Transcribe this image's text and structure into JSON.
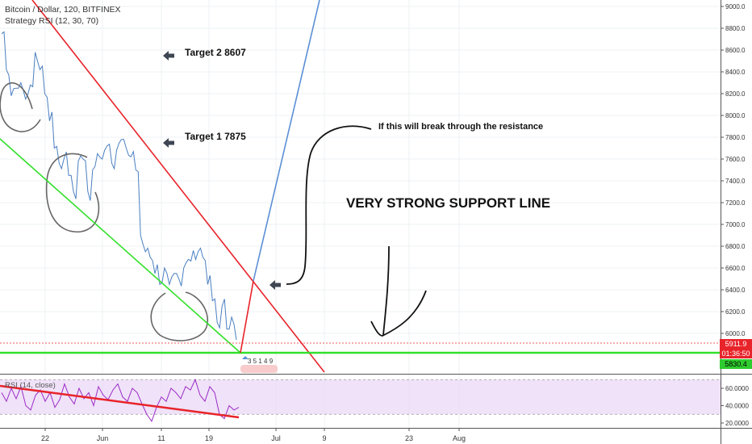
{
  "header": {
    "symbol_line": "Bitcoin / Dollar, 120, BITFINEX",
    "strategy_line": "Strategy RSI (12, 30, 70)"
  },
  "annotations": {
    "target2": "Target 2 8607",
    "target1": "Target 1 7875",
    "breakout_note": "If this will break through the resistance",
    "support_note": "VERY STRONG SUPPORT LINE"
  },
  "price_tags": {
    "last_price": "5911.9",
    "countdown": "01:36:50",
    "support_price": "5830.4"
  },
  "rsi_panel": {
    "label": "RSI (14, close)"
  },
  "trade_markers": "3 5 1 4 9",
  "colors": {
    "price_line": "#4a7fc1",
    "resistance": "#e8232a",
    "support": "#33e02c",
    "projection": "#5b8fd6",
    "rsi_fill": "#e9d6f5",
    "rsi_line": "#9b2bc7",
    "last_price_tag": "#e8232a",
    "countdown_tag": "#e8232a",
    "support_tag": "#2ecc2e"
  },
  "chart_data": {
    "type": "line",
    "title": "Bitcoin / Dollar, 120, BITFINEX",
    "xlabel": "",
    "ylabel": "",
    "ylim": [
      5830,
      9020
    ],
    "y_ticks": [
      6000,
      6200,
      6400,
      6600,
      6800,
      7000,
      7200,
      7400,
      7600,
      7800,
      8000,
      8200,
      8400,
      8600,
      8800,
      9000
    ],
    "x_ticks": [
      "22",
      "Jun",
      "11",
      "19",
      "Jul",
      "9",
      "23",
      "Aug"
    ],
    "x_tick_labels": [
      "22",
      "Jun",
      "11",
      "19",
      "Jul",
      "9",
      "23",
      "Aug"
    ],
    "series": [
      {
        "values": [
          8750,
          8420,
          8180,
          8250,
          8300,
          8150,
          8280,
          8580,
          8420,
          8200,
          7950,
          7700,
          7560,
          7600,
          7450,
          7300,
          7580,
          7600,
          7300,
          7500,
          7650,
          7600,
          7720,
          7560,
          7680,
          7780,
          7700,
          7620,
          7500,
          6900,
          6750,
          6700,
          6550,
          6450,
          6600,
          6450,
          6550,
          6500,
          6600,
          6680,
          6760,
          6750,
          6700,
          6450,
          6300,
          6100,
          6250,
          6040,
          6150,
          5940
        ]
      }
    ],
    "rsi_y_ticks": [
      20,
      40,
      60
    ],
    "rsi_ylim": [
      10,
      75
    ],
    "rsi_band": [
      30,
      70
    ],
    "rsi_values": [
      55,
      45,
      60,
      48,
      62,
      40,
      35,
      52,
      58,
      45,
      55,
      38,
      47,
      65,
      50,
      42,
      60,
      48,
      55,
      40,
      62,
      52,
      47,
      58,
      65,
      50,
      45,
      60,
      55,
      42,
      30,
      22,
      38,
      50,
      45,
      60,
      55,
      48,
      62,
      58,
      70,
      52,
      45,
      62,
      55,
      30,
      25,
      40,
      35,
      38
    ]
  }
}
